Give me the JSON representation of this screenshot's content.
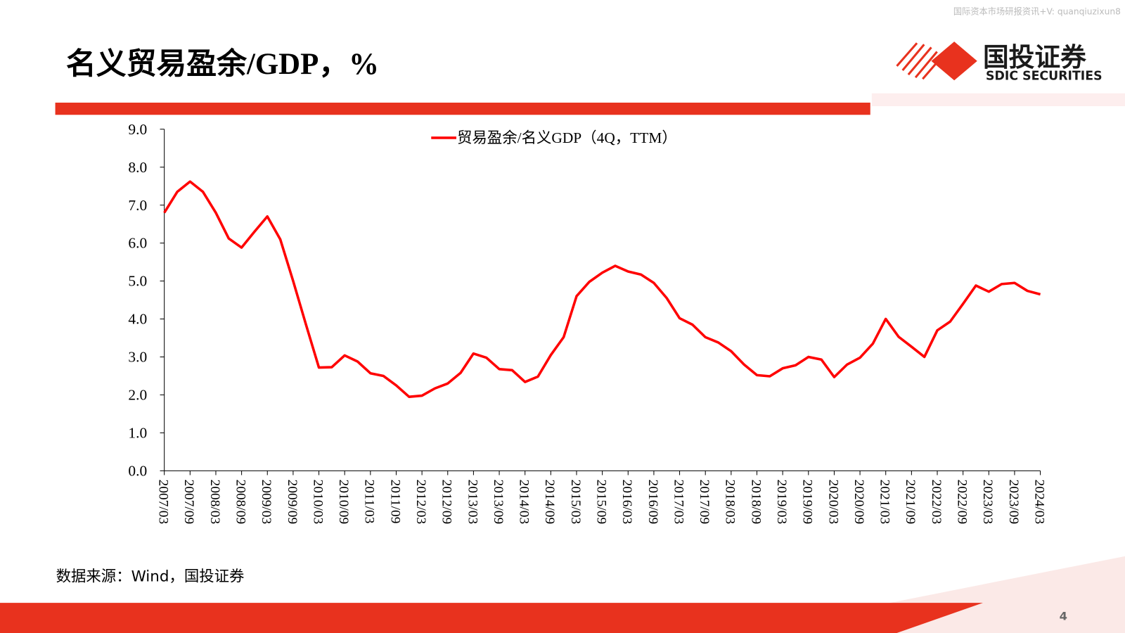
{
  "header": {
    "title": "名义贸易盈余/GDP，%",
    "watermark": "国际资本市场研报资讯+V: quanqiuzixun8",
    "logo_cn": "国投证券",
    "logo_en": "SDIC SECURITIES"
  },
  "footer": {
    "source": "数据来源：Wind，国投证券",
    "page_number": "4"
  },
  "chart_data": {
    "type": "line",
    "categories": [
      "2007/03",
      null,
      "2007/09",
      null,
      "2008/03",
      null,
      "2008/09",
      null,
      "2009/03",
      null,
      "2009/09",
      null,
      "2010/03",
      null,
      "2010/09",
      null,
      "2011/03",
      null,
      "2011/09",
      null,
      "2012/03",
      null,
      "2012/09",
      null,
      "2013/03",
      null,
      "2013/09",
      null,
      "2014/03",
      null,
      "2014/09",
      null,
      "2015/03",
      null,
      "2015/09",
      null,
      "2016/03",
      null,
      "2016/09",
      null,
      "2017/03",
      null,
      "2017/09",
      null,
      "2018/03",
      null,
      "2018/09",
      null,
      "2019/03",
      null,
      "2019/09",
      null,
      "2020/03",
      null,
      "2020/09",
      null,
      "2021/03",
      null,
      "2021/09",
      null,
      "2022/03",
      null,
      "2022/09",
      null,
      "2023/03",
      null,
      "2023/09",
      null,
      "2024/03"
    ],
    "series": [
      {
        "name": "贸易盈余/名义GDP（4Q，TTM）",
        "color": "#ff0000",
        "values": [
          6.8,
          7.35,
          7.62,
          7.35,
          6.8,
          6.12,
          5.88,
          6.3,
          6.7,
          6.1,
          5.0,
          3.85,
          2.72,
          2.73,
          3.04,
          2.88,
          2.57,
          2.5,
          2.25,
          1.95,
          1.98,
          2.17,
          2.3,
          2.58,
          3.09,
          2.98,
          2.68,
          2.65,
          2.34,
          2.48,
          3.05,
          3.52,
          4.6,
          4.98,
          5.22,
          5.4,
          5.25,
          5.17,
          4.95,
          4.55,
          4.02,
          3.85,
          3.52,
          3.38,
          3.15,
          2.8,
          2.52,
          2.49,
          2.7,
          2.78,
          3.0,
          2.93,
          2.47,
          2.8,
          2.98,
          3.35,
          4.0,
          3.53,
          3.27,
          3.0,
          3.7,
          3.93,
          4.4,
          4.88,
          4.72,
          4.92,
          4.95,
          4.74,
          4.65
        ]
      }
    ],
    "ylim": [
      0,
      9
    ],
    "yticks": [
      {
        "value": 0,
        "label": "0.0"
      },
      {
        "value": 1,
        "label": "1.0"
      },
      {
        "value": 2,
        "label": "2.0"
      },
      {
        "value": 3,
        "label": "3.0"
      },
      {
        "value": 4,
        "label": "4.0"
      },
      {
        "value": 5,
        "label": "5.0"
      },
      {
        "value": 6,
        "label": "6.0"
      },
      {
        "value": 7,
        "label": "7.0"
      },
      {
        "value": 8,
        "label": "8.0"
      },
      {
        "value": 9,
        "label": "9.0"
      }
    ],
    "grid": false,
    "legend": "top"
  }
}
